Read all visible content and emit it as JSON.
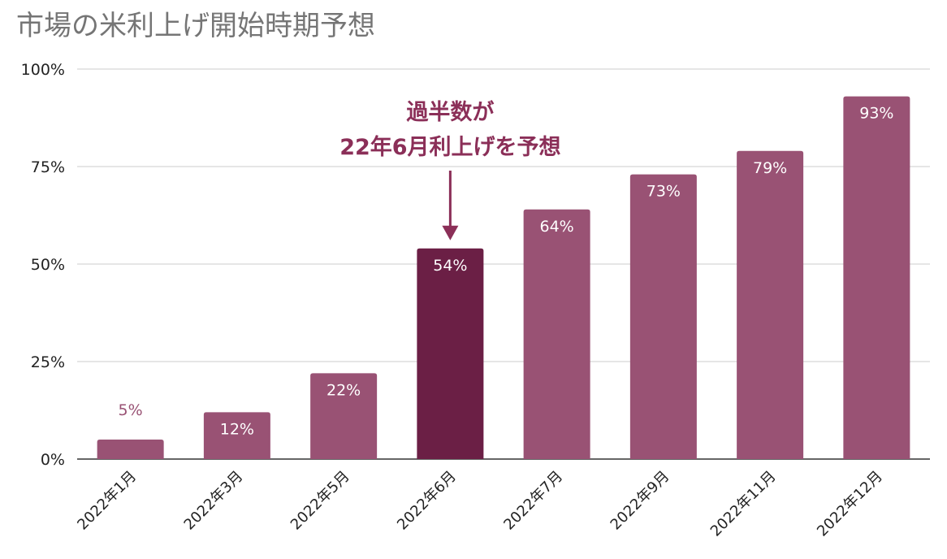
{
  "title": "市場の米利上げ開始時期予想",
  "chart_data": {
    "type": "bar",
    "title": "市場の米利上げ開始時期予想",
    "categories": [
      "2022年1月",
      "2022年3月",
      "2022年5月",
      "2022年6月",
      "2022年7月",
      "2022年9月",
      "2022年11月",
      "2022年12月"
    ],
    "values": [
      5,
      12,
      22,
      54,
      64,
      73,
      79,
      93
    ],
    "value_labels": [
      "5%",
      "12%",
      "22%",
      "54%",
      "64%",
      "73%",
      "79%",
      "93%"
    ],
    "highlight_index": 3,
    "ylim": [
      0,
      100
    ],
    "yticks": [
      0,
      25,
      50,
      75,
      100
    ],
    "ytick_labels": [
      "0%",
      "25%",
      "50%",
      "75%",
      "100%"
    ],
    "xlabel": "",
    "ylabel": "",
    "grid": true,
    "colors": {
      "bar": "#995274",
      "highlight": "#6b1f45",
      "annotation": "#8b2f58",
      "outside_label": "#995274",
      "inside_label": "#ffffff"
    },
    "annotation": {
      "lines": [
        "過半数が",
        "22年6月利上げを予想"
      ],
      "target_index": 3
    }
  }
}
